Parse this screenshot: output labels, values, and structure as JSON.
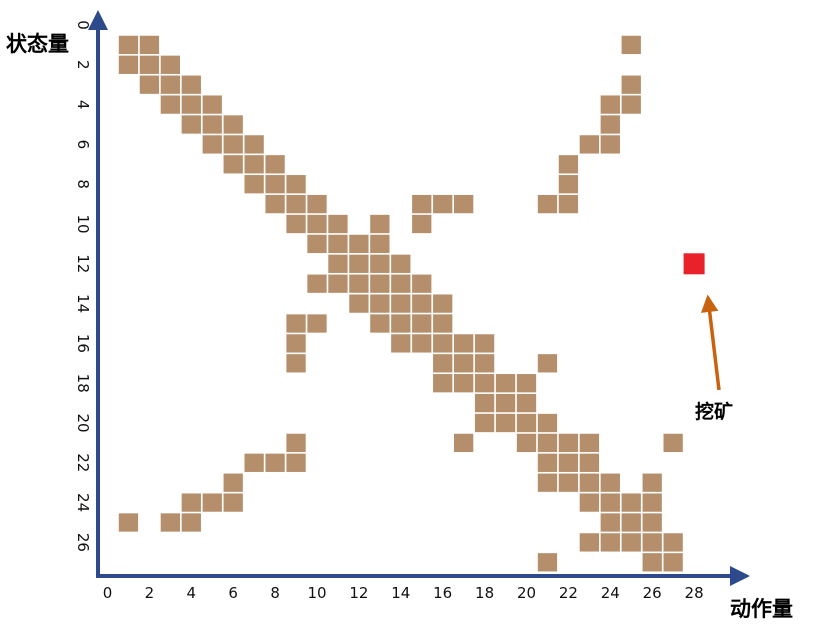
{
  "chart_data": {
    "type": "heatmap",
    "xlabel": "动作量",
    "ylabel": "状态量",
    "x_ticks": [
      "0",
      "2",
      "4",
      "6",
      "8",
      "10",
      "12",
      "14",
      "16",
      "18",
      "20",
      "22",
      "24",
      "26",
      "28"
    ],
    "y_ticks": [
      "0",
      "2",
      "4",
      "6",
      "8",
      "10",
      "12",
      "14",
      "16",
      "18",
      "20",
      "22",
      "24",
      "26"
    ],
    "xlim": [
      0,
      28
    ],
    "ylim": [
      0,
      27
    ],
    "y_inverted": true,
    "cell_color": "#b58f6c",
    "cell_border_color": "#ffffff",
    "axis_color": "#2c4a8c",
    "arrow_color": "#c8620f",
    "marked_color": "#e8212b",
    "cells": [
      [
        1,
        1
      ],
      [
        2,
        1
      ],
      [
        25,
        1
      ],
      [
        1,
        2
      ],
      [
        2,
        2
      ],
      [
        3,
        2
      ],
      [
        2,
        3
      ],
      [
        3,
        3
      ],
      [
        4,
        3
      ],
      [
        25,
        3
      ],
      [
        3,
        4
      ],
      [
        4,
        4
      ],
      [
        5,
        4
      ],
      [
        24,
        4
      ],
      [
        25,
        4
      ],
      [
        4,
        5
      ],
      [
        5,
        5
      ],
      [
        6,
        5
      ],
      [
        24,
        5
      ],
      [
        5,
        6
      ],
      [
        6,
        6
      ],
      [
        7,
        6
      ],
      [
        23,
        6
      ],
      [
        24,
        6
      ],
      [
        6,
        7
      ],
      [
        7,
        7
      ],
      [
        8,
        7
      ],
      [
        22,
        7
      ],
      [
        7,
        8
      ],
      [
        8,
        8
      ],
      [
        9,
        8
      ],
      [
        22,
        8
      ],
      [
        8,
        9
      ],
      [
        9,
        9
      ],
      [
        10,
        9
      ],
      [
        15,
        9
      ],
      [
        16,
        9
      ],
      [
        17,
        9
      ],
      [
        21,
        9
      ],
      [
        22,
        9
      ],
      [
        9,
        10
      ],
      [
        10,
        10
      ],
      [
        11,
        10
      ],
      [
        13,
        10
      ],
      [
        15,
        10
      ],
      [
        10,
        11
      ],
      [
        11,
        11
      ],
      [
        12,
        11
      ],
      [
        13,
        11
      ],
      [
        11,
        12
      ],
      [
        12,
        12
      ],
      [
        13,
        12
      ],
      [
        14,
        12
      ],
      [
        10,
        13
      ],
      [
        11,
        13
      ],
      [
        12,
        13
      ],
      [
        13,
        13
      ],
      [
        14,
        13
      ],
      [
        15,
        13
      ],
      [
        12,
        14
      ],
      [
        13,
        14
      ],
      [
        14,
        14
      ],
      [
        15,
        14
      ],
      [
        16,
        14
      ],
      [
        9,
        15
      ],
      [
        10,
        15
      ],
      [
        13,
        15
      ],
      [
        14,
        15
      ],
      [
        15,
        15
      ],
      [
        16,
        15
      ],
      [
        9,
        16
      ],
      [
        14,
        16
      ],
      [
        15,
        16
      ],
      [
        16,
        16
      ],
      [
        17,
        16
      ],
      [
        18,
        16
      ],
      [
        9,
        17
      ],
      [
        16,
        17
      ],
      [
        17,
        17
      ],
      [
        18,
        17
      ],
      [
        21,
        17
      ],
      [
        16,
        18
      ],
      [
        17,
        18
      ],
      [
        18,
        18
      ],
      [
        19,
        18
      ],
      [
        20,
        18
      ],
      [
        18,
        19
      ],
      [
        19,
        19
      ],
      [
        20,
        19
      ],
      [
        18,
        20
      ],
      [
        19,
        20
      ],
      [
        20,
        20
      ],
      [
        21,
        20
      ],
      [
        9,
        21
      ],
      [
        17,
        21
      ],
      [
        20,
        21
      ],
      [
        21,
        21
      ],
      [
        22,
        21
      ],
      [
        23,
        21
      ],
      [
        27,
        21
      ],
      [
        7,
        22
      ],
      [
        8,
        22
      ],
      [
        9,
        22
      ],
      [
        21,
        22
      ],
      [
        22,
        22
      ],
      [
        23,
        22
      ],
      [
        6,
        23
      ],
      [
        21,
        23
      ],
      [
        22,
        23
      ],
      [
        23,
        23
      ],
      [
        24,
        23
      ],
      [
        26,
        23
      ],
      [
        4,
        24
      ],
      [
        5,
        24
      ],
      [
        6,
        24
      ],
      [
        23,
        24
      ],
      [
        24,
        24
      ],
      [
        25,
        24
      ],
      [
        26,
        24
      ],
      [
        1,
        25
      ],
      [
        3,
        25
      ],
      [
        4,
        25
      ],
      [
        24,
        25
      ],
      [
        25,
        25
      ],
      [
        26,
        25
      ],
      [
        23,
        26
      ],
      [
        24,
        26
      ],
      [
        25,
        26
      ],
      [
        26,
        26
      ],
      [
        27,
        26
      ],
      [
        21,
        27
      ],
      [
        26,
        27
      ],
      [
        27,
        27
      ]
    ],
    "marked_cell": [
      28,
      12
    ],
    "annotation": "挖矿"
  }
}
